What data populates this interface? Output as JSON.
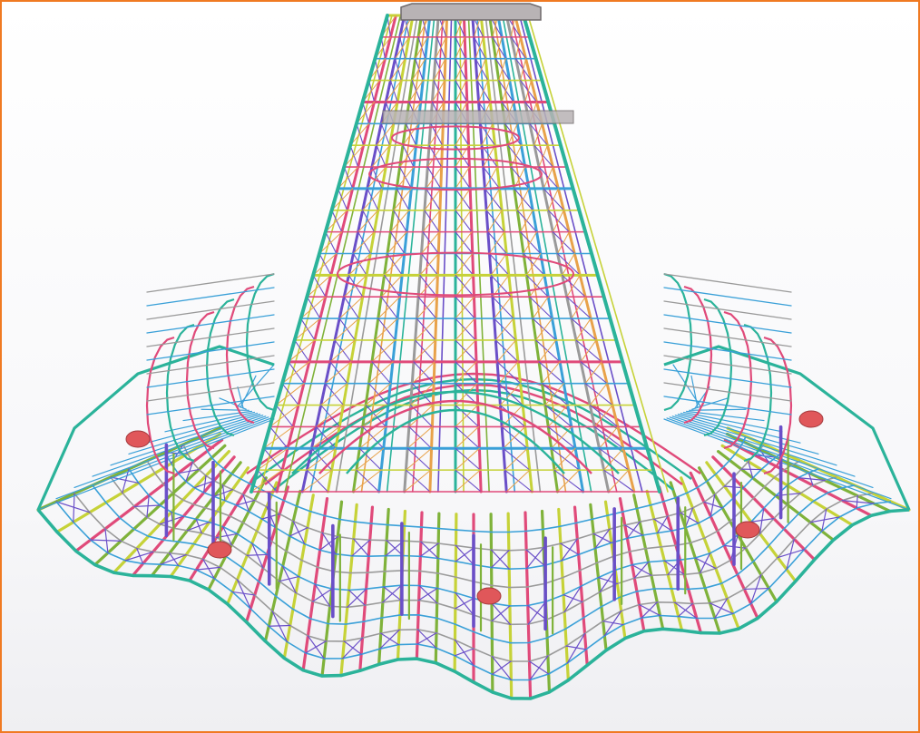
{
  "viewport": {
    "frame_color": "#f07a22",
    "background": "#f7f7f9"
  },
  "model": {
    "kind": "steel structure 3D wireframe",
    "member_colors": [
      "#2bb39a",
      "#e04a7a",
      "#6a4fc8",
      "#c6d238",
      "#7fb23a",
      "#3aa0d8",
      "#9a9a9a",
      "#e8a24a"
    ],
    "support_color": "#e0575a",
    "cap_color": "#b8b3b5"
  }
}
